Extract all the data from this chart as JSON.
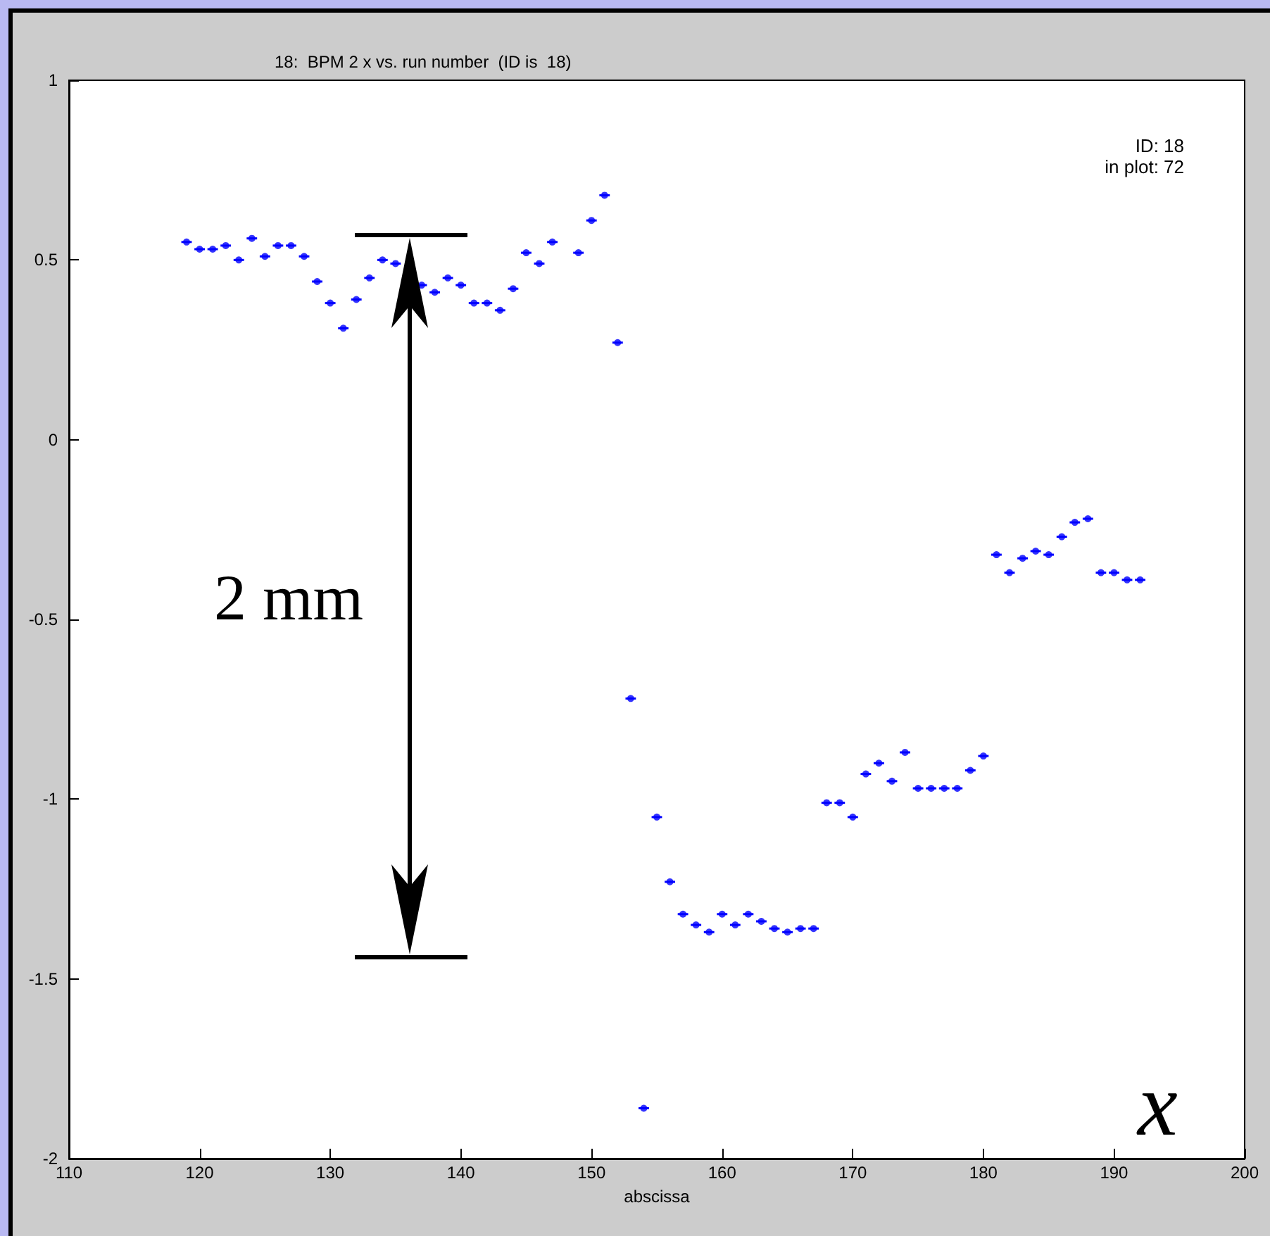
{
  "chart_data": {
    "type": "scatter",
    "title": "18:  BPM 2 x vs. run number  (ID is  18)",
    "xlabel": "abscissa",
    "x": [
      119,
      120,
      121,
      122,
      123,
      124,
      125,
      126,
      127,
      128,
      129,
      130,
      131,
      132,
      133,
      134,
      135,
      137,
      138,
      139,
      140,
      141,
      142,
      143,
      144,
      145,
      146,
      147,
      149,
      150,
      151,
      152,
      153,
      154,
      155,
      156,
      157,
      158,
      159,
      160,
      161,
      162,
      163,
      164,
      165,
      166,
      167,
      168,
      169,
      170,
      171,
      172,
      173,
      174,
      175,
      176,
      177,
      178,
      179,
      180,
      181,
      182,
      183,
      184,
      185,
      186,
      187,
      188,
      189,
      190,
      191,
      192
    ],
    "series": [
      {
        "color": "#0000ff",
        "values": [
          0.55,
          0.53,
          0.53,
          0.54,
          0.5,
          0.56,
          0.51,
          0.54,
          0.54,
          0.51,
          0.44,
          0.38,
          0.31,
          0.39,
          0.45,
          0.5,
          0.49,
          0.43,
          0.41,
          0.45,
          0.43,
          0.38,
          0.38,
          0.36,
          0.42,
          0.52,
          0.49,
          0.55,
          0.52,
          0.61,
          0.68,
          0.27,
          -0.72,
          -1.86,
          -1.05,
          -1.23,
          -1.32,
          -1.35,
          -1.37,
          -1.32,
          -1.35,
          -1.32,
          -1.34,
          -1.36,
          -1.37,
          -1.36,
          -1.36,
          -1.01,
          -1.01,
          -1.05,
          -0.93,
          -0.9,
          -0.95,
          -0.87,
          -0.97,
          -0.97,
          -0.97,
          -0.97,
          -0.92,
          -0.88,
          -0.32,
          -0.37,
          -0.33,
          -0.31,
          -0.32,
          -0.27,
          -0.23,
          -0.22,
          -0.37,
          -0.37,
          -0.39,
          -0.39
        ],
        "xerrors": [
          0.4,
          0.4,
          0.4,
          0.4,
          0.4,
          0.4,
          0.4,
          0.4,
          0.4,
          0.4,
          0.4,
          0.4,
          0.4,
          0.4,
          0.4,
          0.4,
          0.4,
          0.4,
          0.4,
          0.4,
          0.4,
          0.4,
          0.4,
          0.4,
          0.4,
          0.4,
          0.4,
          0.4,
          0.4,
          0.4,
          0.4,
          0.4,
          0.4,
          0.4,
          0.4,
          0.4,
          0.4,
          0.4,
          0.4,
          0.4,
          0.4,
          0.4,
          0.4,
          0.4,
          0.4,
          0.4,
          0.4,
          0.4,
          0.4,
          0.4,
          0.4,
          0.4,
          0.4,
          0.4,
          0.4,
          0.4,
          0.4,
          0.4,
          0.4,
          0.4,
          0.4,
          0.4,
          0.4,
          0.4,
          0.4,
          0.4,
          0.4,
          0.4,
          0.4,
          0.4,
          0.4,
          0.4
        ]
      }
    ],
    "xlim": [
      110,
      200
    ],
    "xticks": [
      110,
      120,
      130,
      140,
      150,
      160,
      170,
      180,
      190,
      200
    ],
    "ylim": [
      -2,
      1
    ],
    "yticks": [
      -2,
      -1.5,
      -1,
      -0.5,
      0,
      0.5,
      1
    ],
    "marker": "circle",
    "annotations": [
      "ID: 18",
      "in plot:  72",
      "2 mm",
      "x"
    ]
  }
}
